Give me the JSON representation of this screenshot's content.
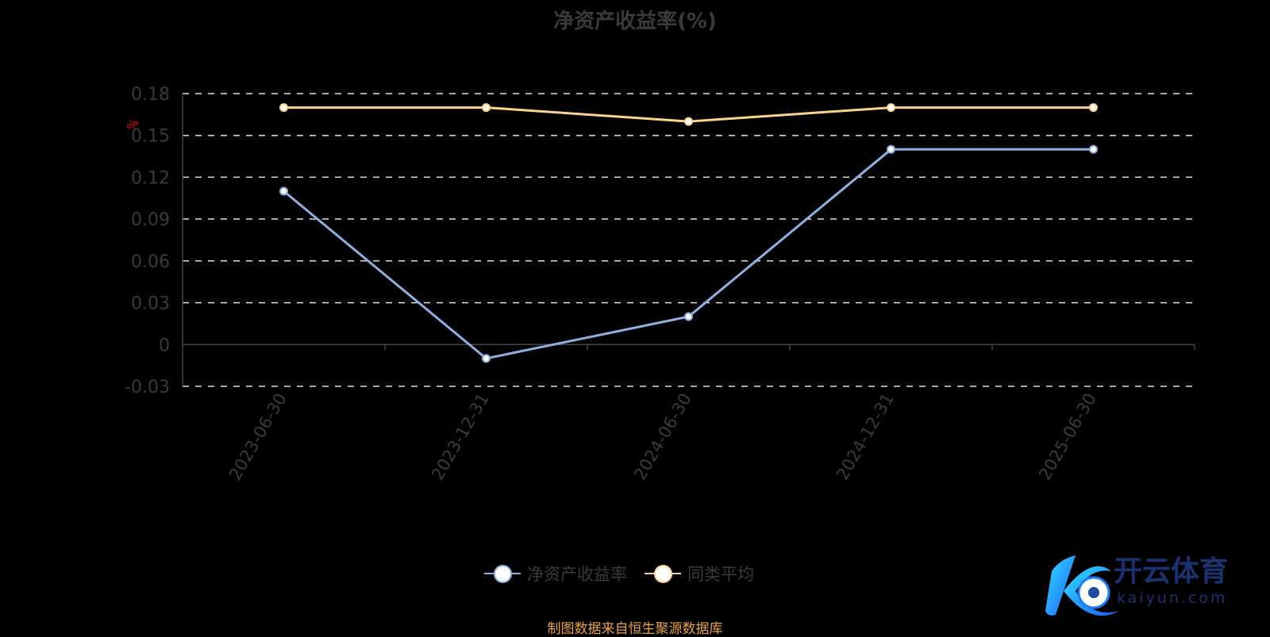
{
  "chart_data": {
    "type": "line",
    "title": "净资产收益率(%)",
    "ylabel": "%",
    "categories": [
      "2023-06-30",
      "2023-12-31",
      "2024-06-30",
      "2024-12-31",
      "2025-06-30"
    ],
    "ylim": [
      -0.03,
      0.18
    ],
    "yticks": [
      "-0.03",
      "0",
      "0.03",
      "0.06",
      "0.09",
      "0.12",
      "0.15",
      "0.18"
    ],
    "grid": true,
    "legend_position": "bottom",
    "series": [
      {
        "name": "净资产收益率",
        "values": [
          0.11,
          -0.01,
          0.02,
          0.14,
          0.14
        ],
        "color": "#8eb0e0"
      },
      {
        "name": "同类平均",
        "values": [
          0.17,
          0.17,
          0.16,
          0.17,
          0.17
        ],
        "color": "#fcd38c"
      }
    ]
  },
  "footer": "制图数据来自恒生聚源数据库",
  "logo": {
    "text": "开云体育",
    "sub": "kaiyun.com"
  }
}
